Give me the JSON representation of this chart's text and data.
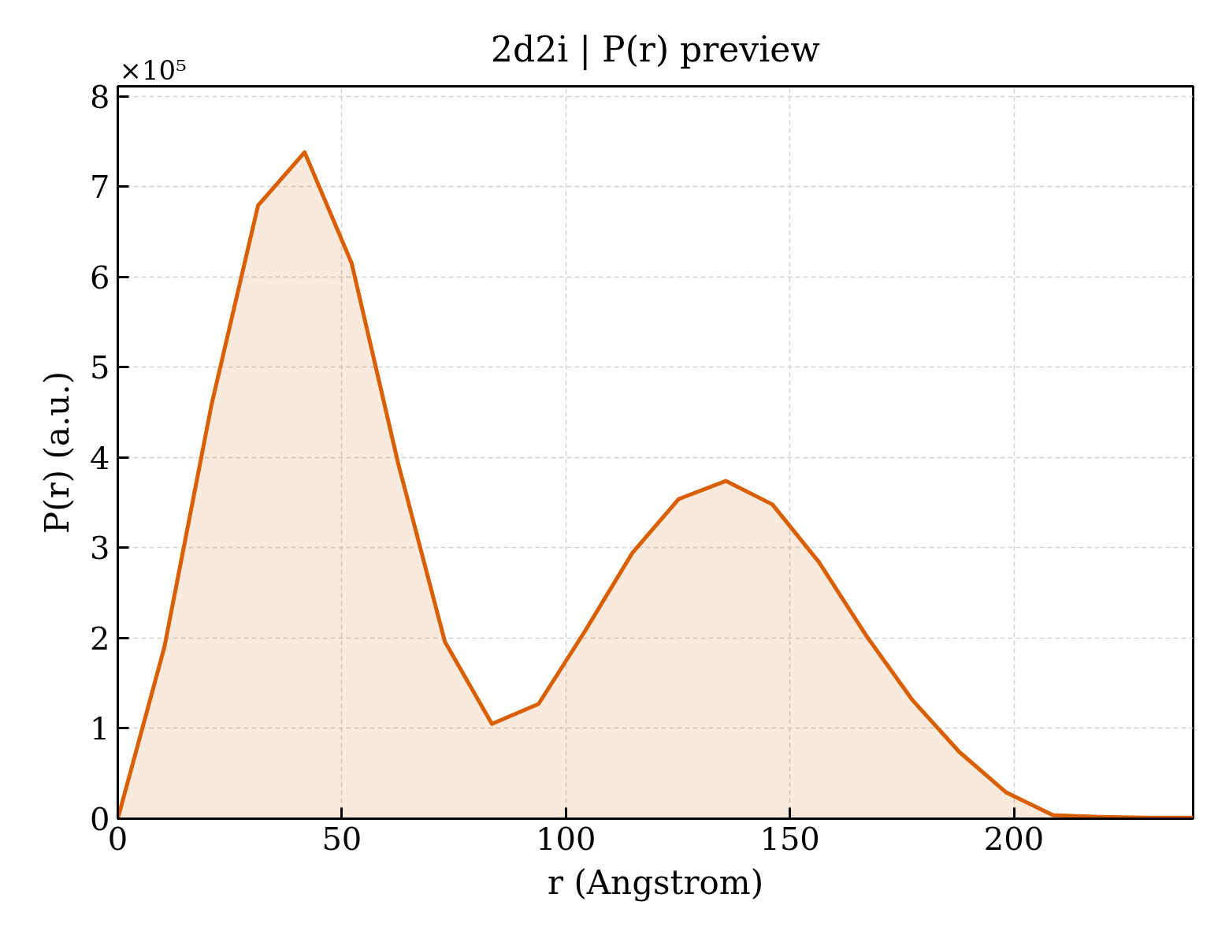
{
  "chart_data": {
    "type": "area",
    "title": "2d2i | P(r) preview",
    "xlabel": "r (Angstrom)",
    "ylabel": "P(r) (a.u.)",
    "annotations": [
      "×10⁵"
    ],
    "x": [
      0,
      10.4,
      20.9,
      31.3,
      41.7,
      52.2,
      62.6,
      73.0,
      83.5,
      93.9,
      104.3,
      114.8,
      125.2,
      135.7,
      146.1,
      156.5,
      167.0,
      177.4,
      187.8,
      198.3,
      208.7,
      219.1,
      229.6,
      240
    ],
    "series": [
      {
        "color": "#d95f02",
        "values": [
          0,
          1.9,
          4.58,
          6.79,
          7.38,
          6.15,
          3.93,
          1.96,
          1.05,
          1.27,
          2.08,
          2.94,
          3.54,
          3.74,
          3.48,
          2.84,
          2.03,
          1.31,
          0.74,
          0.29,
          0.04,
          0.02,
          0.01,
          0.01
        ]
      }
    ],
    "xlim": [
      0,
      240
    ],
    "ylim": [
      0,
      8.11
    ],
    "xticks": [
      0,
      50,
      100,
      150,
      200
    ],
    "yticks": [
      0,
      1,
      2,
      3,
      4,
      5,
      6,
      7,
      8
    ],
    "grid": true
  }
}
